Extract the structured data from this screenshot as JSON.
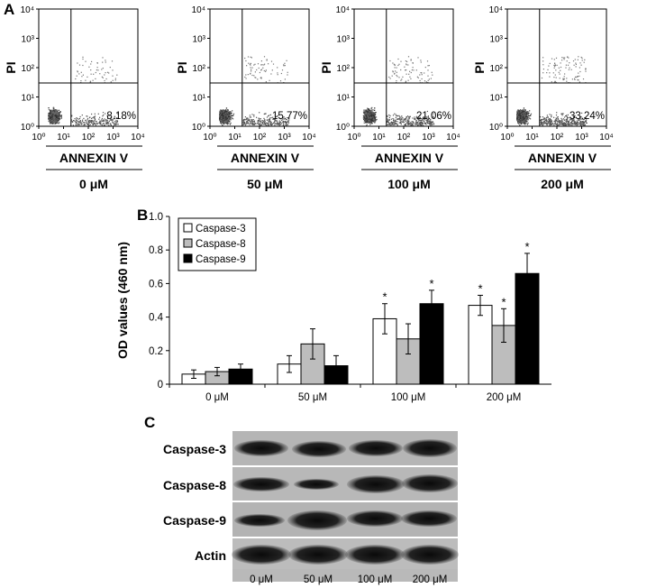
{
  "panels": {
    "a": "A",
    "b": "B",
    "c": "C"
  },
  "chart_data": [
    {
      "type": "scatter",
      "panel": "A",
      "xlabel": "ANNEXIN V",
      "ylabel": "PI",
      "x_scale": "log",
      "y_scale": "log",
      "xlim": [
        1,
        10000
      ],
      "ylim": [
        1,
        10000
      ],
      "x_ticks": [
        "10⁰",
        "10¹",
        "10²",
        "10³",
        "10⁴"
      ],
      "y_ticks": [
        "10⁰",
        "10¹",
        "10²",
        "10³",
        "10⁴"
      ],
      "quadrant_gate": {
        "x": 20,
        "y": 30
      },
      "plots": [
        {
          "condition": "0 μM",
          "percent_label": "8.18%",
          "percent_value": 8.18
        },
        {
          "condition": "50 μM",
          "percent_label": "15.77%",
          "percent_value": 15.77
        },
        {
          "condition": "100 μM",
          "percent_label": "21.06%",
          "percent_value": 21.06
        },
        {
          "condition": "200 μM",
          "percent_label": "33.24%",
          "percent_value": 33.24
        }
      ]
    },
    {
      "type": "bar",
      "panel": "B",
      "ylabel": "OD values (460 nm)",
      "xlabel": "",
      "ylim": [
        0,
        1.0
      ],
      "y_ticks": [
        "0",
        "0.2",
        "0.4",
        "0.6",
        "0.8",
        "1.0"
      ],
      "y_tick_values": [
        0,
        0.2,
        0.4,
        0.6,
        0.8,
        1.0
      ],
      "categories": [
        "0 μM",
        "50 μM",
        "100 μM",
        "200 μM"
      ],
      "legend_position": "top-left",
      "series": [
        {
          "name": "Caspase-3",
          "color": "#ffffff",
          "values": [
            0.06,
            0.12,
            0.39,
            0.47
          ],
          "errors": [
            0.025,
            0.05,
            0.09,
            0.06
          ],
          "significant": [
            false,
            false,
            true,
            true
          ]
        },
        {
          "name": "Caspase-8",
          "color": "#bdbdbd",
          "values": [
            0.075,
            0.24,
            0.27,
            0.35
          ],
          "errors": [
            0.025,
            0.09,
            0.09,
            0.1
          ],
          "significant": [
            false,
            false,
            false,
            true
          ]
        },
        {
          "name": "Caspase-9",
          "color": "#000000",
          "values": [
            0.09,
            0.11,
            0.48,
            0.66
          ],
          "errors": [
            0.03,
            0.06,
            0.08,
            0.12
          ],
          "significant": [
            false,
            false,
            true,
            true
          ]
        }
      ],
      "significance_marker": "*"
    }
  ],
  "blot": {
    "panel": "C",
    "rows": [
      "Caspase-3",
      "Caspase-8",
      "Caspase-9",
      "Actin"
    ],
    "lanes": [
      "0 μM",
      "50 μM",
      "100 μM",
      "200 μM"
    ]
  }
}
